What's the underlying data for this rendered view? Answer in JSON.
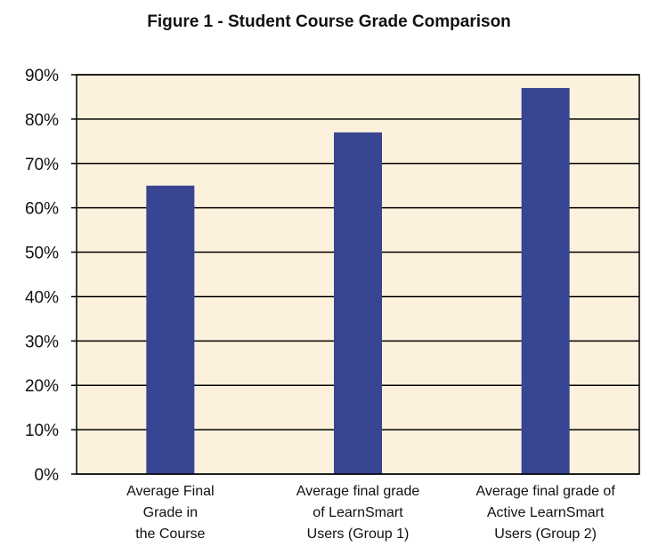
{
  "chart_data": {
    "type": "bar",
    "title": "Figure 1 - Student Course Grade Comparison",
    "xlabel": "",
    "ylabel": "",
    "categories": [
      "Average Final\nGrade in\nthe Course",
      "Average final grade\nof LearnSmart\nUsers (Group 1)",
      "Average final grade of\nActive LearnSmart\nUsers (Group 2)"
    ],
    "values": [
      65,
      77,
      87
    ],
    "ylim": [
      0,
      90
    ],
    "y_ticks": [
      0,
      10,
      20,
      30,
      40,
      50,
      60,
      70,
      80,
      90
    ],
    "y_tick_labels": [
      "0%",
      "10%",
      "20%",
      "30%",
      "40%",
      "50%",
      "60%",
      "70%",
      "80%",
      "90%"
    ],
    "grid": true,
    "legend": "none",
    "colors": {
      "bar": "#384593",
      "plot_background": "#fcf1dc",
      "gridline": "#000000",
      "text": "#111111"
    }
  }
}
